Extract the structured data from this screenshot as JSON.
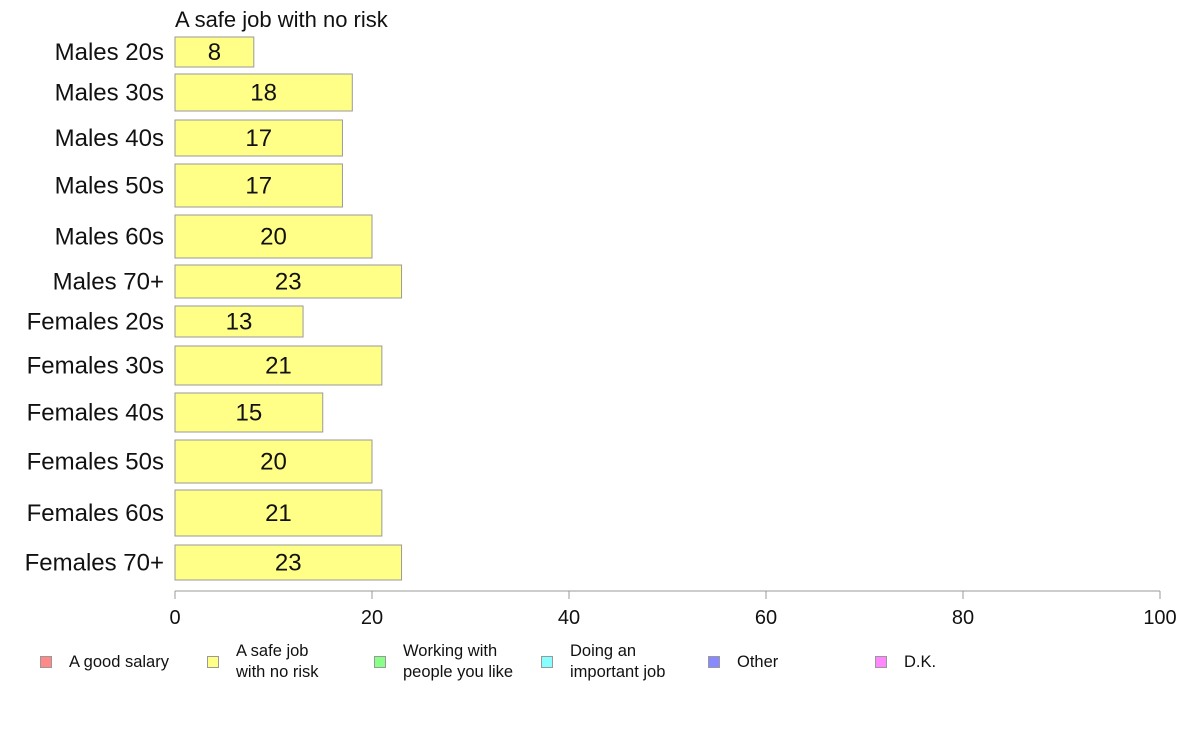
{
  "chart_data": {
    "type": "bar",
    "orientation": "horizontal",
    "title": "A safe job with no risk",
    "categories": [
      "Males 20s",
      "Males 30s",
      "Males 40s",
      "Males 50s",
      "Males 60s",
      "Males 70+",
      "Females 20s",
      "Females 30s",
      "Females 40s",
      "Females 50s",
      "Females 60s",
      "Females 70+"
    ],
    "values": [
      8,
      18,
      17,
      17,
      20,
      23,
      13,
      21,
      15,
      20,
      21,
      23
    ],
    "bar_color": "#ffff88",
    "xlim": [
      0,
      100
    ],
    "xticks": [
      0,
      20,
      40,
      60,
      80,
      100
    ],
    "grid": false,
    "legend_position": "bottom",
    "legend": [
      {
        "label": "A good salary",
        "color": "#ff8888"
      },
      {
        "label": "A safe job\nwith no risk",
        "color": "#ffff88"
      },
      {
        "label": "Working with\npeople you like",
        "color": "#88ff88"
      },
      {
        "label": "Doing an\nimportant job",
        "color": "#88ffff"
      },
      {
        "label": "Other",
        "color": "#8888ff"
      },
      {
        "label": "D.K.",
        "color": "#ff88ff"
      }
    ]
  }
}
